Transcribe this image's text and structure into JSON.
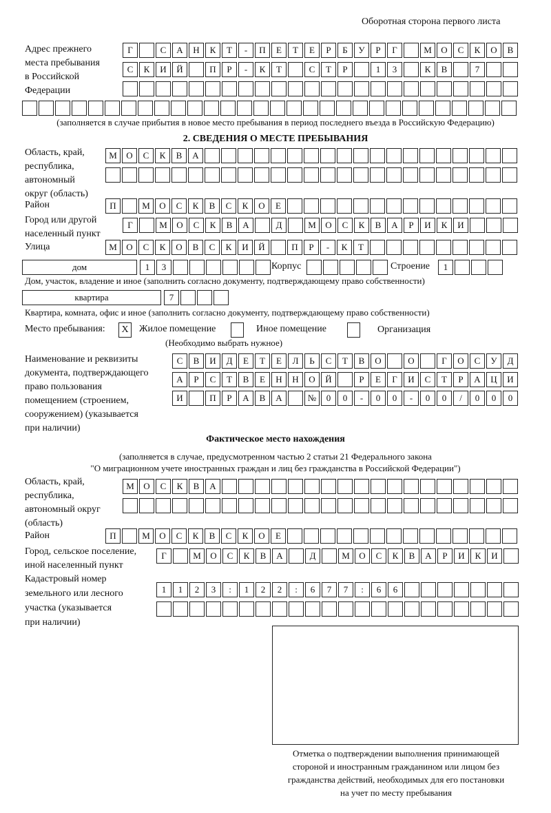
{
  "header": "Оборотная сторона первого листа",
  "prev_address": {
    "label": [
      "Адрес прежнего",
      "места пребывания",
      "в Российской",
      "Федерации"
    ],
    "rows": [
      [
        "Г",
        "",
        "С",
        "А",
        "Н",
        "К",
        "Т",
        "-",
        "П",
        "Е",
        "Т",
        "Е",
        "Р",
        "Б",
        "У",
        "Р",
        "Г",
        "",
        "М",
        "О",
        "С",
        "К",
        "О",
        "В"
      ],
      [
        "С",
        "К",
        "И",
        "Й",
        "",
        "П",
        "Р",
        "-",
        "К",
        "Т",
        "",
        "С",
        "Т",
        "Р",
        "",
        "1",
        "3",
        "",
        "К",
        "В",
        "",
        "7",
        "",
        ""
      ],
      [
        "",
        "",
        "",
        "",
        "",
        "",
        "",
        "",
        "",
        "",
        "",
        "",
        "",
        "",
        "",
        "",
        "",
        "",
        "",
        "",
        "",
        "",
        "",
        ""
      ],
      [
        "",
        "",
        "",
        "",
        "",
        "",
        "",
        "",
        "",
        "",
        "",
        "",
        "",
        "",
        "",
        "",
        "",
        "",
        "",
        "",
        "",
        "",
        "",
        "",
        "",
        "",
        "",
        "",
        "",
        ""
      ]
    ],
    "note": "(заполняется в случае прибытия в новое место пребывания в период последнего въезда в Российскую Федерацию)"
  },
  "section2": {
    "title": "2. СВЕДЕНИЯ О МЕСТЕ ПРЕБЫВАНИЯ",
    "oblast_label": [
      "Область, край,",
      "республика,",
      "автономный",
      "округ (область)"
    ],
    "oblast_rows": [
      [
        "М",
        "О",
        "С",
        "К",
        "В",
        "А",
        "",
        "",
        "",
        "",
        "",
        "",
        "",
        "",
        "",
        "",
        "",
        "",
        "",
        "",
        "",
        "",
        "",
        "",
        ""
      ],
      [
        "",
        "",
        "",
        "",
        "",
        "",
        "",
        "",
        "",
        "",
        "",
        "",
        "",
        "",
        "",
        "",
        "",
        "",
        "",
        "",
        "",
        "",
        "",
        "",
        ""
      ]
    ],
    "raion_label": "Район",
    "raion_row": [
      "П",
      "",
      "М",
      "О",
      "С",
      "К",
      "В",
      "С",
      "К",
      "О",
      "Е",
      "",
      "",
      "",
      "",
      "",
      "",
      "",
      "",
      "",
      "",
      "",
      "",
      "",
      ""
    ],
    "gorod_label": [
      "Город или другой",
      "населенный пункт"
    ],
    "gorod_row": [
      "Г",
      "",
      "М",
      "О",
      "С",
      "К",
      "В",
      "А",
      "",
      "Д",
      "",
      "М",
      "О",
      "С",
      "К",
      "В",
      "А",
      "Р",
      "И",
      "К",
      "И",
      "",
      "",
      ""
    ],
    "ulica_label": "Улица",
    "ulica_row": [
      "М",
      "О",
      "С",
      "К",
      "О",
      "В",
      "С",
      "К",
      "И",
      "Й",
      "",
      "П",
      "Р",
      "-",
      "К",
      "Т",
      "",
      "",
      "",
      "",
      "",
      "",
      "",
      "",
      ""
    ],
    "dom_type": "дом",
    "dom_row": [
      "1",
      "3",
      "",
      "",
      "",
      "",
      "",
      ""
    ],
    "korpus_label": "Корпус",
    "korpus_row": [
      "",
      "",
      "",
      "",
      ""
    ],
    "stroenie_label": "Строение",
    "stroenie_row": [
      "1",
      "",
      "",
      ""
    ],
    "dom_caption": "Дом, участок, владение и иное (заполнить согласно документу, подтверждающему право собственности)",
    "kv_type": "квартира",
    "kv_row": [
      "7",
      "",
      "",
      ""
    ],
    "kv_caption": "Квартира, комната, офис и иное (заполнить согласно документу, подтверждающему право собственности)",
    "mesto_label": "Место пребывания:",
    "options": [
      {
        "label": "Жилое помещение",
        "mark": "X"
      },
      {
        "label": "Иное помещение",
        "mark": ""
      },
      {
        "label": "Организация",
        "mark": ""
      }
    ],
    "choose_note": "(Необходимо выбрать нужное)",
    "doc_label": [
      "Наименование и реквизиты",
      "документа, подтверждающего",
      "право пользования",
      "помещением (строением,",
      "сооружением) (указывается",
      "при наличии)"
    ],
    "doc_rows": [
      [
        "С",
        "В",
        "И",
        "Д",
        "Е",
        "Т",
        "Е",
        "Л",
        "Ь",
        "С",
        "Т",
        "В",
        "О",
        "",
        "О",
        "",
        "Г",
        "О",
        "С",
        "У",
        "Д"
      ],
      [
        "А",
        "Р",
        "С",
        "Т",
        "В",
        "Е",
        "Н",
        "Н",
        "О",
        "Й",
        "",
        "Р",
        "Е",
        "Г",
        "И",
        "С",
        "Т",
        "Р",
        "А",
        "Ц",
        "И"
      ],
      [
        "И",
        "",
        "П",
        "Р",
        "А",
        "В",
        "А",
        "",
        "№",
        "0",
        "0",
        "-",
        "0",
        "0",
        "-",
        "0",
        "0",
        "/",
        "0",
        "0",
        "0"
      ]
    ]
  },
  "actual": {
    "title": "Фактическое место нахождения",
    "note1": "(заполняется в случае, предусмотренном частью 2 статьи 21 Федерального закона",
    "note2": "\"О миграционном учете иностранных граждан и лиц без гражданства в Российской Федерации\")",
    "oblast_label": [
      "Область, край,",
      "республика,",
      "автономный округ",
      "(область)"
    ],
    "oblast_rows": [
      [
        "М",
        "О",
        "С",
        "К",
        "В",
        "А",
        "",
        "",
        "",
        "",
        "",
        "",
        "",
        "",
        "",
        "",
        "",
        "",
        "",
        "",
        "",
        "",
        "",
        ""
      ],
      [
        "",
        "",
        "",
        "",
        "",
        "",
        "",
        "",
        "",
        "",
        "",
        "",
        "",
        "",
        "",
        "",
        "",
        "",
        "",
        "",
        "",
        "",
        "",
        ""
      ]
    ],
    "raion_label": "Район",
    "raion_row": [
      "П",
      "",
      "М",
      "О",
      "С",
      "К",
      "В",
      "С",
      "К",
      "О",
      "Е",
      "",
      "",
      "",
      "",
      "",
      "",
      "",
      "",
      "",
      "",
      "",
      "",
      "",
      ""
    ],
    "gorod_label": [
      "Город, сельское поселение,",
      "иной населенный пункт"
    ],
    "gorod_row": [
      "Г",
      "",
      "М",
      "О",
      "С",
      "К",
      "В",
      "А",
      "",
      "Д",
      "",
      "М",
      "О",
      "С",
      "К",
      "В",
      "А",
      "Р",
      "И",
      "К",
      "И",
      ""
    ],
    "kadastr_label": [
      "Кадастровый номер",
      "земельного или лесного",
      "участка (указывается",
      "при наличии)"
    ],
    "kadastr_rows": [
      [
        "1",
        "1",
        "2",
        "3",
        ":",
        "1",
        "2",
        "2",
        ":",
        "6",
        "7",
        "7",
        ":",
        "6",
        "6",
        "",
        "",
        "",
        "",
        "",
        "",
        ""
      ],
      [
        "",
        "",
        "",
        "",
        "",
        "",
        "",
        "",
        "",
        "",
        "",
        "",
        "",
        "",
        "",
        "",
        "",
        "",
        "",
        "",
        "",
        ""
      ]
    ],
    "stamp_caption": [
      "Отметка о подтверждении выполнения принимающей",
      "стороной и иностранным гражданином или лицом без",
      "гражданства действий, необходимых для его постановки",
      "на учет по месту пребывания"
    ]
  }
}
